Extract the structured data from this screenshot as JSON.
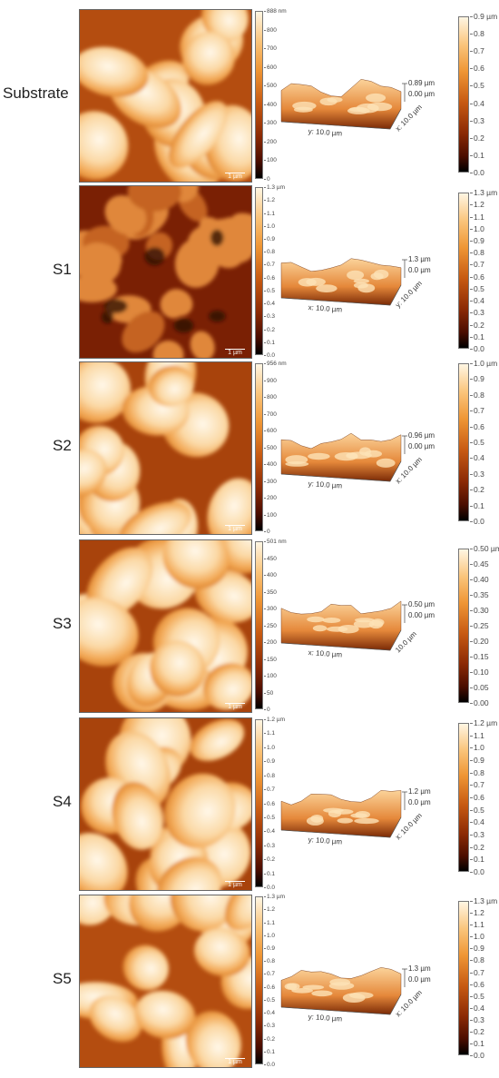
{
  "rows": [
    {
      "label": "Substrate",
      "scale_bar": "1 µm",
      "map_colorbar": {
        "unit": "nm",
        "ticks": [
          "888 nm",
          "800",
          "700",
          "600",
          "500",
          "400",
          "300",
          "200",
          "100",
          "0"
        ]
      },
      "view3d": {
        "z_top": "0.89 µm",
        "z_bottom": "0.00 µm",
        "axis_a": "y: 10.0 µm",
        "axis_b": "x: 10.0 µm"
      },
      "colorbar": {
        "ticks": [
          "0.9 µm",
          "0.8",
          "0.7",
          "0.6",
          "0.5",
          "0.4",
          "0.3",
          "0.2",
          "0.1",
          "0.0"
        ]
      },
      "grain_tone": "light"
    },
    {
      "label": "S1",
      "scale_bar": "1 µm",
      "map_colorbar": {
        "ticks": [
          "1.3 µm",
          "1.2",
          "1.1",
          "1.0",
          "0.9",
          "0.8",
          "0.7",
          "0.6",
          "0.5",
          "0.4",
          "0.3",
          "0.2",
          "0.1",
          "0.0"
        ]
      },
      "view3d": {
        "z_top": "1.3 µm",
        "z_bottom": "0.0 µm",
        "axis_a": "x: 10.0 µm",
        "axis_b": "y: 10.0 µm"
      },
      "colorbar": {
        "ticks": [
          "1.3 µm",
          "1.2",
          "1.1",
          "1.0",
          "0.9",
          "0.8",
          "0.7",
          "0.6",
          "0.5",
          "0.4",
          "0.3",
          "0.2",
          "0.1",
          "0.0"
        ]
      },
      "grain_tone": "dark"
    },
    {
      "label": "S2",
      "scale_bar": "1 µm",
      "map_colorbar": {
        "ticks": [
          "956 nm",
          "900",
          "800",
          "700",
          "600",
          "500",
          "400",
          "300",
          "200",
          "100",
          "0"
        ]
      },
      "view3d": {
        "z_top": "0.96 µm",
        "z_bottom": "0.00 µm",
        "axis_a": "y: 10.0 µm",
        "axis_b": "x: 10.0 µm"
      },
      "colorbar": {
        "ticks": [
          "1.0 µm",
          "0.9",
          "0.8",
          "0.7",
          "0.6",
          "0.5",
          "0.4",
          "0.3",
          "0.2",
          "0.1",
          "0.0"
        ]
      },
      "grain_tone": "mid"
    },
    {
      "label": "S3",
      "scale_bar": "1 µm",
      "map_colorbar": {
        "ticks": [
          "501 nm",
          "450",
          "400",
          "350",
          "300",
          "250",
          "200",
          "150",
          "100",
          "50",
          "0"
        ]
      },
      "view3d": {
        "z_top": "0.50 µm",
        "z_bottom": "0.00 µm",
        "axis_a": "x: 10.0 µm",
        "axis_b": "10.0 µm"
      },
      "colorbar": {
        "ticks": [
          "0.50 µm",
          "0.45",
          "0.40",
          "0.35",
          "0.30",
          "0.25",
          "0.20",
          "0.15",
          "0.10",
          "0.05",
          "0.00"
        ]
      },
      "grain_tone": "mid"
    },
    {
      "label": "S4",
      "scale_bar": "1 µm",
      "map_colorbar": {
        "ticks": [
          "1.2 µm",
          "1.1",
          "1.0",
          "0.9",
          "0.8",
          "0.7",
          "0.6",
          "0.5",
          "0.4",
          "0.3",
          "0.2",
          "0.1",
          "0.0"
        ]
      },
      "view3d": {
        "z_top": "1.2 µm",
        "z_bottom": "0.0 µm",
        "axis_a": "y: 10.0 µm",
        "axis_b": "x: 10.0 µm"
      },
      "colorbar": {
        "ticks": [
          "1.2 µm",
          "1.1",
          "1.0",
          "0.9",
          "0.8",
          "0.7",
          "0.6",
          "0.5",
          "0.4",
          "0.3",
          "0.2",
          "0.1",
          "0.0"
        ]
      },
      "grain_tone": "mid"
    },
    {
      "label": "S5",
      "scale_bar": "1 µm",
      "map_colorbar": {
        "ticks": [
          "1.3 µm",
          "1.2",
          "1.1",
          "1.0",
          "0.9",
          "0.8",
          "0.7",
          "0.6",
          "0.5",
          "0.4",
          "0.3",
          "0.2",
          "0.1",
          "0.0"
        ]
      },
      "view3d": {
        "z_top": "1.3 µm",
        "z_bottom": "0.0 µm",
        "axis_a": "y: 10.0 µm",
        "axis_b": "x: 10.0 µm"
      },
      "colorbar": {
        "ticks": [
          "1.3 µm",
          "1.2",
          "1.1",
          "1.0",
          "0.9",
          "0.8",
          "0.7",
          "0.6",
          "0.5",
          "0.4",
          "0.3",
          "0.2",
          "0.1",
          "0.0"
        ]
      },
      "grain_tone": "light"
    }
  ],
  "colors": {
    "high": "#fff6e3",
    "mid": "#ef9635",
    "low": "#8b2a05",
    "black": "#000000"
  }
}
